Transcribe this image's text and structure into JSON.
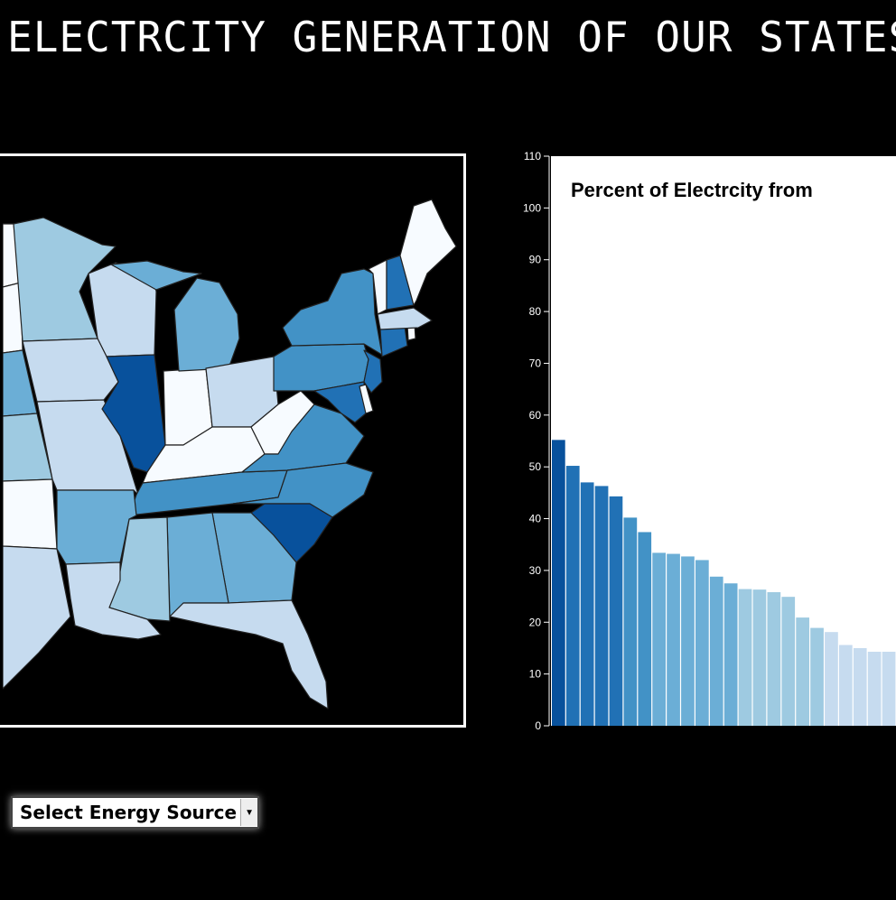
{
  "page": {
    "title": "ELECTRCITY GENERATION OF OUR STATES"
  },
  "controls": {
    "energy_select_label": "Select Energy Source"
  },
  "icons": {
    "dropdown": "chevron-down-icon"
  },
  "colors": {
    "background": "#000000",
    "scale": [
      "#f7fbff",
      "#c6dbef",
      "#9ecae1",
      "#6baed6",
      "#4292c6",
      "#2171b5",
      "#08519c"
    ]
  },
  "chart_data": {
    "type": "bar",
    "title": "Percent of Electrcity from",
    "xlabel": "",
    "ylabel": "",
    "ylim": [
      0,
      110
    ],
    "yticks": [
      0,
      10,
      20,
      30,
      40,
      50,
      60,
      70,
      80,
      90,
      100,
      110
    ],
    "grid": false,
    "values": [
      55.2,
      50.2,
      47.0,
      46.3,
      44.3,
      40.2,
      37.4,
      33.4,
      33.2,
      32.7,
      32.0,
      28.8,
      27.5,
      26.4,
      26.3,
      25.8,
      24.9,
      20.9,
      18.9,
      18.1,
      15.6,
      15.0,
      14.3,
      14.3
    ]
  }
}
